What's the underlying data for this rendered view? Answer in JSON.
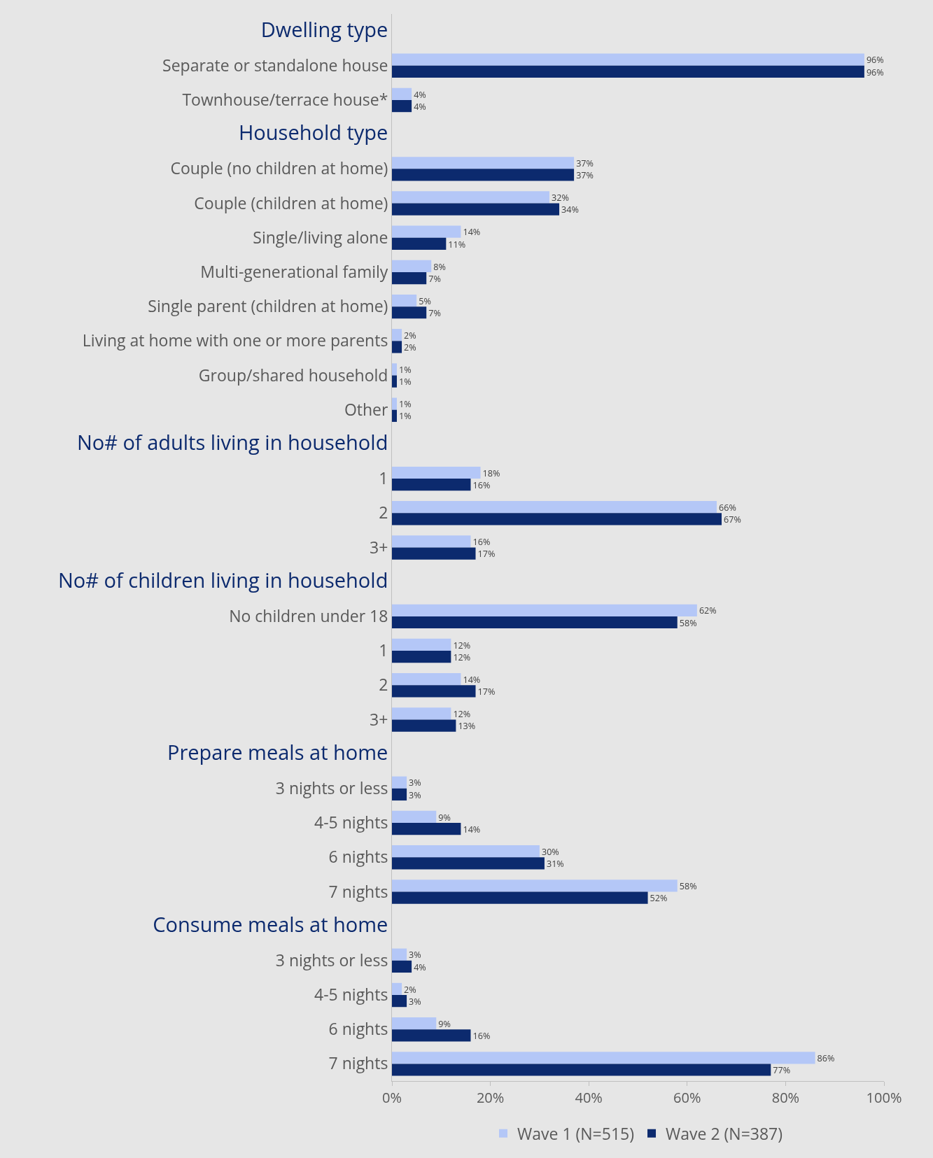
{
  "chart_data": {
    "type": "bar",
    "orientation": "horizontal",
    "categories": [
      "Dwelling type",
      "Separate or standalone house",
      "Townhouse/terrace house*",
      "Household type",
      "Couple (no children at home)",
      "Couple (children at home)",
      "Single/living alone",
      "Multi-generational family",
      "Single parent (children at home)",
      "Living at home with one or more parents",
      "Group/shared household",
      "Other",
      "No# of adults living in household",
      "1",
      "2",
      "3+",
      "No# of children living in household",
      "No children under 18",
      "1",
      "2",
      "3+",
      "Prepare meals at home",
      "3 nights or less",
      "4-5 nights",
      "6 nights",
      "7 nights",
      "Consume meals at home",
      "3 nights or less",
      "4-5 nights",
      "6 nights",
      "7 nights"
    ],
    "series": [
      {
        "name": "Wave 1 (N=515)",
        "color": "#b4c7f7",
        "values": [
          null,
          96,
          4,
          null,
          37,
          32,
          14,
          8,
          5,
          2,
          1,
          1,
          null,
          18,
          66,
          16,
          null,
          62,
          12,
          14,
          12,
          null,
          3,
          9,
          30,
          58,
          null,
          3,
          2,
          9,
          86
        ],
        "value_labels": [
          null,
          "96%",
          "4%",
          null,
          "37%",
          "32%",
          "14%",
          "8%",
          "5%",
          "2%",
          "1%",
          "1%",
          null,
          "18%",
          "66%",
          "16%",
          null,
          "62%",
          "12%",
          "14%",
          "12%",
          null,
          "3%",
          "9%",
          "30%",
          "58%",
          null,
          "3%",
          "2%",
          "9%",
          "86%"
        ]
      },
      {
        "name": "Wave 2 (N=387)",
        "color": "#0c2a6e",
        "values": [
          null,
          96,
          4,
          null,
          37,
          34,
          11,
          7,
          7,
          2,
          1,
          1,
          null,
          16,
          67,
          17,
          null,
          58,
          12,
          17,
          13,
          null,
          3,
          14,
          31,
          52,
          null,
          4,
          3,
          16,
          77
        ],
        "value_labels": [
          null,
          "96%",
          "4%",
          null,
          "37%",
          "34%",
          "11%",
          "7%",
          "7%",
          "2%",
          "1%",
          "1%",
          null,
          "16%",
          "67%",
          "17%",
          null,
          "58%",
          "12%",
          "17%",
          "13%",
          null,
          "3%",
          "14%",
          "31%",
          "52%",
          null,
          "4%",
          "3%",
          "16%",
          "77%"
        ]
      }
    ],
    "xlim": [
      0,
      100
    ],
    "xticks": [
      {
        "value": 0,
        "label": "0%"
      },
      {
        "value": 20,
        "label": "20%"
      },
      {
        "value": 40,
        "label": "40%"
      },
      {
        "value": 60,
        "label": "60%"
      },
      {
        "value": 80,
        "label": "80%"
      },
      {
        "value": 100,
        "label": "100%"
      }
    ],
    "grid": false,
    "legend": "bottom"
  }
}
